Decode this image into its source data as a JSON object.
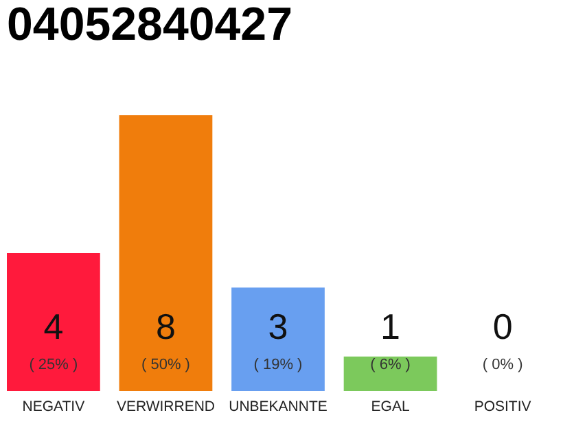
{
  "chart_data": {
    "type": "bar",
    "title": "04052840427",
    "categories": [
      "NEGATIV",
      "VERWIRREND",
      "UNBEKANNTE",
      "EGAL",
      "POSITIV"
    ],
    "values": [
      4,
      8,
      3,
      1,
      0
    ],
    "colors": [
      "#ff1a3c",
      "#f07d0c",
      "#689ff0",
      "#7cc95c",
      "#2ea84a"
    ],
    "data_labels": true,
    "annotations": [
      "( 25% )",
      "( 50% )",
      "( 19% )",
      "( 6% )",
      "( 0% )"
    ]
  }
}
